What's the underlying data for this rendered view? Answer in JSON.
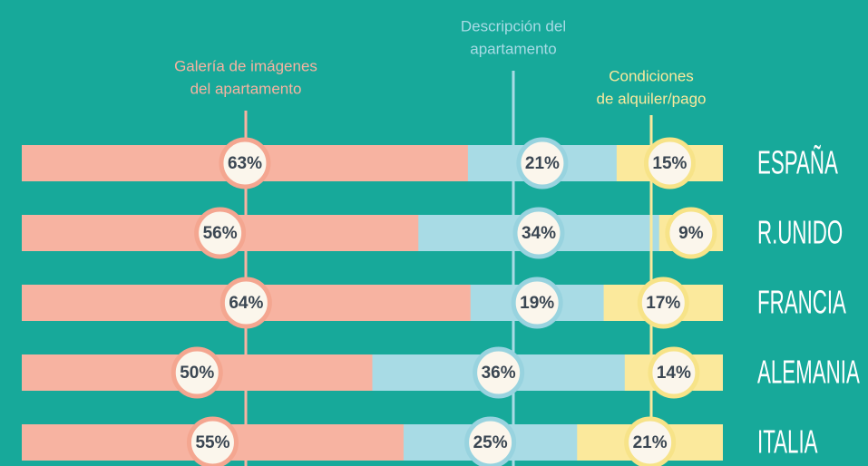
{
  "chart_data": {
    "type": "stacked_bar",
    "categories": [
      "ESPAÑA",
      "R.UNIDO",
      "FRANCIA",
      "ALEMANIA",
      "ITALIA"
    ],
    "series": [
      {
        "name": [
          "Galería de imágenes",
          "del apartamento"
        ],
        "color": "#f7b3a1",
        "ring": "#f4a690",
        "values": [
          63,
          56,
          64,
          50,
          55
        ],
        "value_labels": [
          "63%",
          "56%",
          "64%",
          "50%",
          "55%"
        ]
      },
      {
        "name": [
          "Descripción del",
          "apartamento"
        ],
        "color": "#a8dbe5",
        "ring": "#98d3df",
        "values": [
          21,
          34,
          19,
          36,
          25
        ],
        "value_labels": [
          "21%",
          "34%",
          "19%",
          "36%",
          "25%"
        ]
      },
      {
        "name": [
          "Condiciones",
          "de alquiler/pago"
        ],
        "color": "#fbe99c",
        "ring": "#f7e388",
        "values": [
          15,
          9,
          17,
          14,
          21
        ],
        "value_labels": [
          "15%",
          "9%",
          "17%",
          "14%",
          "21%"
        ]
      }
    ]
  }
}
